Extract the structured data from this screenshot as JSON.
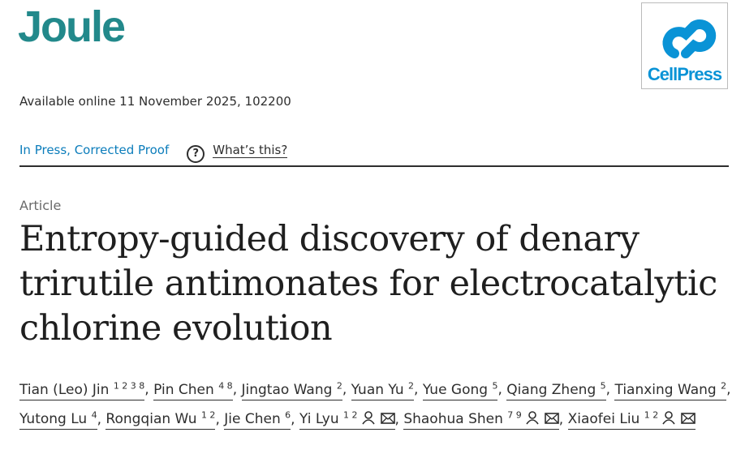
{
  "header": {
    "journal": "Joule",
    "publisher": "CellPress",
    "availability": "Available online 11 November 2025, 102200"
  },
  "status": {
    "label": "In Press, Corrected Proof",
    "help_symbol": "?",
    "help_link": "What’s this?"
  },
  "article": {
    "type": "Article",
    "title": "Entropy-guided discovery of denary trirutile antimonates for electrocatalytic chlorine evolution",
    "separator": ",",
    "authors": [
      {
        "name": "Tian (Leo) Jin",
        "affiliations": "1 2 3 8",
        "corresponding": false
      },
      {
        "name": "Pin Chen",
        "affiliations": "4 8",
        "corresponding": false
      },
      {
        "name": "Jingtao Wang",
        "affiliations": "2",
        "corresponding": false
      },
      {
        "name": "Yuan Yu",
        "affiliations": "2",
        "corresponding": false
      },
      {
        "name": "Yue Gong",
        "affiliations": "5",
        "corresponding": false
      },
      {
        "name": "Qiang Zheng",
        "affiliations": "5",
        "corresponding": false
      },
      {
        "name": "Tianxing Wang",
        "affiliations": "2",
        "corresponding": false
      },
      {
        "name": "Yutong Lu",
        "affiliations": "4",
        "corresponding": false
      },
      {
        "name": "Rongqian Wu",
        "affiliations": "1 2",
        "corresponding": false
      },
      {
        "name": "Jie Chen",
        "affiliations": "6",
        "corresponding": false
      },
      {
        "name": "Yi Lyu",
        "affiliations": "1 2",
        "corresponding": true
      },
      {
        "name": "Shaohua Shen",
        "affiliations": "7 9",
        "corresponding": true
      },
      {
        "name": "Xiaofei Liu",
        "affiliations": "1 2",
        "corresponding": true
      }
    ]
  }
}
